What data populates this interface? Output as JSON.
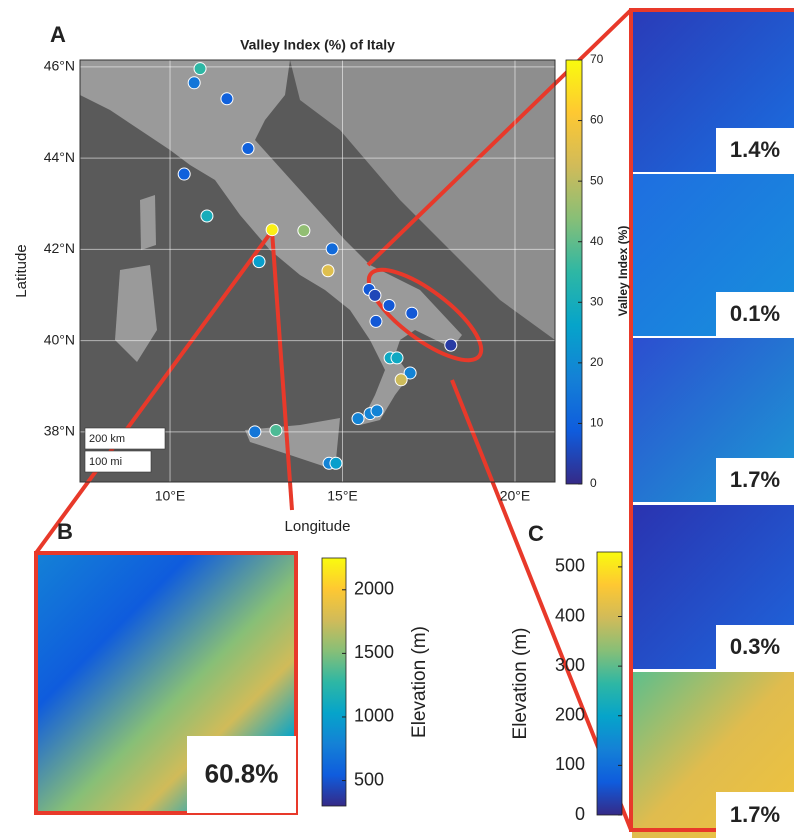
{
  "chart_data": [
    {
      "type": "scatter",
      "panel": "A",
      "title": "Valley Index (%) of Italy",
      "x_label": "Longitude",
      "y_label": "Latitude",
      "xlim": [
        7.39,
        21.16
      ],
      "ylim": [
        36.9,
        46.15
      ],
      "xticks": [
        {
          "value": 10,
          "label": "10°E"
        },
        {
          "value": 15,
          "label": "15°E"
        },
        {
          "value": 20,
          "label": "20°E"
        }
      ],
      "yticks": [
        {
          "value": 38,
          "label": "38°N"
        },
        {
          "value": 40,
          "label": "40°N"
        },
        {
          "value": 42,
          "label": "42°N"
        },
        {
          "value": 44,
          "label": "44°N"
        },
        {
          "value": 46,
          "label": "46°N"
        }
      ],
      "grid": true,
      "x": [
        10.87,
        10.7,
        11.65,
        12.26,
        10.41,
        11.07,
        12.96,
        13.88,
        14.7,
        12.58,
        14.58,
        15.77,
        15.94,
        16.35,
        15.97,
        17.01,
        18.14,
        16.38,
        16.58,
        16.96,
        16.7,
        15.45,
        15.8,
        16.0,
        12.46,
        13.07,
        14.61,
        14.81
      ],
      "y": [
        45.96,
        45.65,
        45.3,
        44.21,
        43.65,
        42.73,
        42.43,
        42.41,
        42.01,
        41.73,
        41.53,
        41.12,
        40.99,
        40.77,
        40.42,
        40.6,
        39.9,
        39.62,
        39.62,
        39.29,
        39.14,
        38.29,
        38.4,
        38.46,
        38.0,
        38.03,
        37.31,
        37.31
      ],
      "values": [
        35,
        15,
        10,
        10,
        10,
        30,
        68,
        45,
        12,
        25,
        55,
        8,
        5,
        8,
        8,
        8,
        3,
        28,
        28,
        18,
        52,
        18,
        18,
        18,
        15,
        38,
        18,
        25
      ],
      "colorbar": {
        "label": "Valley Index (%)",
        "lim": [
          0,
          70
        ],
        "ticks": [
          0,
          10,
          20,
          30,
          40,
          50,
          60,
          70
        ]
      },
      "scale_bar": [
        "200 km",
        "100 mi"
      ]
    },
    {
      "type": "colorbar",
      "panel": "B",
      "label": "Elevation (m)",
      "ylim": [
        300,
        2250
      ],
      "yticks": [
        500,
        1000,
        1500,
        2000
      ],
      "annotations": [
        "60.8%"
      ]
    },
    {
      "type": "colorbar",
      "panel": "C",
      "label": "Elevation (m)",
      "ylim": [
        0,
        530
      ],
      "yticks": [
        0,
        100,
        200,
        300,
        400,
        500
      ],
      "annotations": [
        "1.4%",
        "0.1%",
        "1.7%",
        "0.3%",
        "1.7%"
      ]
    }
  ],
  "colormap": [
    "#352a87",
    "#0f5cdd",
    "#1481d6",
    "#06a4ca",
    "#2eb7a4",
    "#87bf77",
    "#d1bb59",
    "#fec832",
    "#f9fb0e"
  ]
}
